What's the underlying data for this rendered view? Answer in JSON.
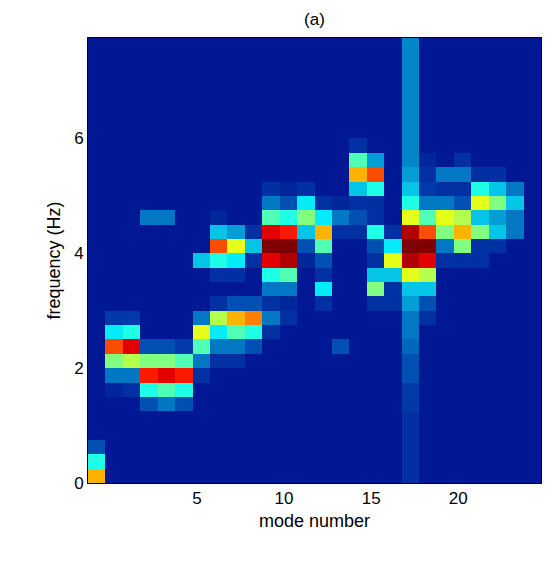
{
  "chart_data": {
    "type": "heatmap",
    "title": "(a)",
    "x_label": "mode number",
    "y_label": "frequency (Hz)",
    "x": [
      -0.75,
      0.25,
      1.25,
      2.25,
      3.25,
      4.25,
      5.25,
      6.25,
      7.25,
      8.25,
      9.25,
      10.25,
      11.25,
      12.25,
      13.25,
      14.25,
      15.25,
      16.25,
      17.25,
      18.25,
      19.25,
      20.25,
      21.25,
      22.25,
      23.25,
      24.25
    ],
    "y": [
      0.125,
      0.375,
      0.625,
      0.875,
      1.125,
      1.375,
      1.625,
      1.875,
      2.125,
      2.375,
      2.625,
      2.875,
      3.125,
      3.375,
      3.625,
      3.875,
      4.125,
      4.375,
      4.625,
      4.875,
      5.125,
      5.375,
      5.625,
      5.875,
      6.125,
      6.375,
      6.625,
      6.875,
      7.125,
      7.375,
      7.625
    ],
    "xlim": [
      -1.25,
      24.75
    ],
    "ylim": [
      0,
      7.75
    ],
    "xticks": [
      5,
      10,
      15,
      20
    ],
    "yticks": [
      0,
      2,
      4,
      6
    ],
    "zlim": [
      0,
      1
    ],
    "z_columns": [
      [
        0.7,
        0.4,
        0.15,
        0.05,
        0.05,
        0.05,
        0.05,
        0.05,
        0.05,
        0.05,
        0.05,
        0.05,
        0.05,
        0.05,
        0.05,
        0.05,
        0.05,
        0.05,
        0.05,
        0.05,
        0.05,
        0.05,
        0.05,
        0.05,
        0.05,
        0.05,
        0.05,
        0.05,
        0.05,
        0.05,
        0.05
      ],
      [
        0.05,
        0.05,
        0.05,
        0.05,
        0.05,
        0.05,
        0.08,
        0.2,
        0.5,
        0.8,
        0.35,
        0.12,
        0.05,
        0.05,
        0.05,
        0.05,
        0.05,
        0.05,
        0.05,
        0.05,
        0.05,
        0.05,
        0.05,
        0.05,
        0.05,
        0.05,
        0.05,
        0.05,
        0.05,
        0.05,
        0.05
      ],
      [
        0.05,
        0.05,
        0.05,
        0.05,
        0.05,
        0.05,
        0.1,
        0.2,
        0.55,
        0.9,
        0.4,
        0.12,
        0.05,
        0.05,
        0.05,
        0.05,
        0.05,
        0.05,
        0.05,
        0.05,
        0.05,
        0.05,
        0.05,
        0.05,
        0.05,
        0.05,
        0.05,
        0.05,
        0.05,
        0.05,
        0.05
      ],
      [
        0.05,
        0.05,
        0.05,
        0.05,
        0.05,
        0.15,
        0.4,
        0.85,
        0.5,
        0.15,
        0.05,
        0.05,
        0.05,
        0.05,
        0.05,
        0.05,
        0.05,
        0.05,
        0.2,
        0.05,
        0.05,
        0.05,
        0.05,
        0.05,
        0.05,
        0.05,
        0.05,
        0.05,
        0.05,
        0.05,
        0.05
      ],
      [
        0.05,
        0.05,
        0.05,
        0.05,
        0.05,
        0.2,
        0.45,
        0.9,
        0.5,
        0.15,
        0.05,
        0.05,
        0.05,
        0.05,
        0.05,
        0.05,
        0.05,
        0.05,
        0.2,
        0.05,
        0.05,
        0.05,
        0.05,
        0.05,
        0.05,
        0.05,
        0.05,
        0.05,
        0.05,
        0.05,
        0.05
      ],
      [
        0.05,
        0.05,
        0.05,
        0.05,
        0.05,
        0.15,
        0.4,
        0.85,
        0.45,
        0.12,
        0.05,
        0.05,
        0.05,
        0.05,
        0.05,
        0.05,
        0.05,
        0.05,
        0.05,
        0.05,
        0.05,
        0.05,
        0.05,
        0.05,
        0.05,
        0.05,
        0.05,
        0.05,
        0.05,
        0.05,
        0.05
      ],
      [
        0.05,
        0.05,
        0.05,
        0.05,
        0.05,
        0.05,
        0.05,
        0.1,
        0.2,
        0.45,
        0.6,
        0.2,
        0.05,
        0.05,
        0.05,
        0.3,
        0.05,
        0.05,
        0.05,
        0.05,
        0.05,
        0.05,
        0.05,
        0.05,
        0.05,
        0.05,
        0.05,
        0.05,
        0.05,
        0.05,
        0.05
      ],
      [
        0.05,
        0.05,
        0.05,
        0.05,
        0.05,
        0.05,
        0.05,
        0.05,
        0.1,
        0.2,
        0.35,
        0.55,
        0.1,
        0.05,
        0.1,
        0.4,
        0.8,
        0.3,
        0.08,
        0.05,
        0.05,
        0.05,
        0.05,
        0.05,
        0.05,
        0.05,
        0.05,
        0.05,
        0.05,
        0.05,
        0.05
      ],
      [
        0.05,
        0.05,
        0.05,
        0.05,
        0.05,
        0.05,
        0.05,
        0.05,
        0.1,
        0.2,
        0.45,
        0.7,
        0.15,
        0.05,
        0.1,
        0.35,
        0.6,
        0.25,
        0.05,
        0.05,
        0.05,
        0.05,
        0.05,
        0.05,
        0.05,
        0.05,
        0.05,
        0.05,
        0.05,
        0.05,
        0.05
      ],
      [
        0.05,
        0.05,
        0.05,
        0.05,
        0.05,
        0.05,
        0.05,
        0.05,
        0.05,
        0.15,
        0.4,
        0.75,
        0.15,
        0.05,
        0.05,
        0.1,
        0.3,
        0.1,
        0.05,
        0.05,
        0.05,
        0.05,
        0.05,
        0.05,
        0.05,
        0.05,
        0.05,
        0.05,
        0.05,
        0.05,
        0.05
      ],
      [
        0.05,
        0.05,
        0.05,
        0.05,
        0.05,
        0.05,
        0.05,
        0.05,
        0.05,
        0.05,
        0.1,
        0.2,
        0.1,
        0.2,
        0.4,
        0.9,
        1,
        0.9,
        0.45,
        0.2,
        0.1,
        0.05,
        0.05,
        0.05,
        0.05,
        0.05,
        0.05,
        0.05,
        0.05,
        0.05,
        0.05
      ],
      [
        0.05,
        0.05,
        0.05,
        0.05,
        0.05,
        0.05,
        0.05,
        0.05,
        0.05,
        0.05,
        0.05,
        0.1,
        0.08,
        0.2,
        0.45,
        0.95,
        1,
        0.85,
        0.4,
        0.15,
        0.08,
        0.05,
        0.05,
        0.05,
        0.05,
        0.05,
        0.05,
        0.05,
        0.05,
        0.05,
        0.05
      ],
      [
        0.05,
        0.05,
        0.05,
        0.05,
        0.05,
        0.05,
        0.05,
        0.05,
        0.05,
        0.05,
        0.05,
        0.05,
        0.05,
        0.05,
        0.05,
        0.08,
        0.15,
        0.3,
        0.5,
        0.35,
        0.1,
        0.05,
        0.05,
        0.05,
        0.05,
        0.05,
        0.05,
        0.05,
        0.05,
        0.05,
        0.05
      ],
      [
        0.05,
        0.05,
        0.05,
        0.05,
        0.05,
        0.05,
        0.05,
        0.05,
        0.05,
        0.05,
        0.05,
        0.05,
        0.1,
        0.35,
        0.1,
        0.15,
        0.45,
        0.7,
        0.35,
        0.1,
        0.05,
        0.05,
        0.05,
        0.05,
        0.05,
        0.05,
        0.05,
        0.05,
        0.05,
        0.05,
        0.05
      ],
      [
        0.05,
        0.05,
        0.05,
        0.05,
        0.05,
        0.05,
        0.05,
        0.05,
        0.05,
        0.15,
        0.05,
        0.05,
        0.05,
        0.05,
        0.05,
        0.05,
        0.05,
        0.1,
        0.2,
        0.08,
        0.05,
        0.05,
        0.05,
        0.05,
        0.05,
        0.05,
        0.05,
        0.05,
        0.05,
        0.05,
        0.05
      ],
      [
        0.05,
        0.05,
        0.05,
        0.05,
        0.05,
        0.05,
        0.05,
        0.05,
        0.05,
        0.05,
        0.05,
        0.05,
        0.05,
        0.05,
        0.05,
        0.05,
        0.05,
        0.1,
        0.15,
        0.1,
        0.3,
        0.7,
        0.45,
        0.1,
        0.05,
        0.05,
        0.05,
        0.05,
        0.05,
        0.05,
        0.05
      ],
      [
        0.05,
        0.05,
        0.05,
        0.05,
        0.05,
        0.05,
        0.05,
        0.05,
        0.05,
        0.05,
        0.05,
        0.05,
        0.1,
        0.5,
        0.3,
        0.1,
        0.15,
        0.4,
        0.1,
        0.1,
        0.4,
        0.8,
        0.25,
        0.05,
        0.05,
        0.05,
        0.05,
        0.05,
        0.05,
        0.05,
        0.05
      ],
      [
        0.05,
        0.05,
        0.05,
        0.05,
        0.05,
        0.05,
        0.05,
        0.05,
        0.05,
        0.05,
        0.05,
        0.05,
        0.1,
        0.1,
        0.3,
        0.6,
        0.35,
        0.1,
        0.05,
        0.05,
        0.05,
        0.05,
        0.05,
        0.05,
        0.05,
        0.05,
        0.05,
        0.05,
        0.05,
        0.05,
        0.05
      ],
      [
        0.1,
        0.1,
        0.1,
        0.1,
        0.1,
        0.12,
        0.12,
        0.15,
        0.15,
        0.18,
        0.2,
        0.2,
        0.25,
        0.3,
        0.6,
        0.95,
        1,
        0.95,
        0.6,
        0.4,
        0.3,
        0.25,
        0.22,
        0.22,
        0.22,
        0.22,
        0.22,
        0.22,
        0.22,
        0.22,
        0.22
      ],
      [
        0.05,
        0.05,
        0.05,
        0.05,
        0.05,
        0.05,
        0.05,
        0.05,
        0.05,
        0.05,
        0.05,
        0.1,
        0.15,
        0.3,
        0.55,
        0.9,
        1,
        0.8,
        0.45,
        0.2,
        0.12,
        0.1,
        0.08,
        0.05,
        0.05,
        0.05,
        0.05,
        0.05,
        0.05,
        0.05,
        0.05
      ],
      [
        0.05,
        0.05,
        0.05,
        0.05,
        0.05,
        0.05,
        0.05,
        0.05,
        0.05,
        0.05,
        0.05,
        0.05,
        0.05,
        0.05,
        0.05,
        0.1,
        0.2,
        0.5,
        0.6,
        0.2,
        0.1,
        0.2,
        0.05,
        0.05,
        0.05,
        0.05,
        0.05,
        0.05,
        0.05,
        0.05,
        0.05
      ],
      [
        0.05,
        0.05,
        0.05,
        0.05,
        0.05,
        0.05,
        0.05,
        0.05,
        0.05,
        0.05,
        0.05,
        0.05,
        0.05,
        0.05,
        0.05,
        0.1,
        0.5,
        0.7,
        0.55,
        0.15,
        0.1,
        0.2,
        0.1,
        0.05,
        0.05,
        0.05,
        0.05,
        0.05,
        0.05,
        0.05,
        0.05
      ],
      [
        0.05,
        0.05,
        0.05,
        0.05,
        0.05,
        0.05,
        0.05,
        0.05,
        0.05,
        0.05,
        0.05,
        0.05,
        0.05,
        0.05,
        0.05,
        0.1,
        0.1,
        0.5,
        0.3,
        0.6,
        0.4,
        0.1,
        0.05,
        0.05,
        0.05,
        0.05,
        0.05,
        0.05,
        0.05,
        0.05,
        0.05
      ],
      [
        0.05,
        0.05,
        0.05,
        0.05,
        0.05,
        0.05,
        0.05,
        0.05,
        0.05,
        0.05,
        0.05,
        0.05,
        0.05,
        0.05,
        0.05,
        0.05,
        0.1,
        0.3,
        0.25,
        0.5,
        0.3,
        0.1,
        0.05,
        0.05,
        0.05,
        0.05,
        0.05,
        0.05,
        0.05,
        0.05,
        0.05
      ],
      [
        0.05,
        0.05,
        0.05,
        0.05,
        0.05,
        0.05,
        0.05,
        0.05,
        0.05,
        0.05,
        0.05,
        0.05,
        0.05,
        0.05,
        0.05,
        0.05,
        0.05,
        0.2,
        0.2,
        0.3,
        0.2,
        0.05,
        0.05,
        0.05,
        0.05,
        0.05,
        0.05,
        0.05,
        0.05,
        0.05,
        0.05
      ],
      [
        0.05,
        0.05,
        0.05,
        0.05,
        0.05,
        0.05,
        0.05,
        0.05,
        0.05,
        0.05,
        0.05,
        0.05,
        0.05,
        0.05,
        0.05,
        0.05,
        0.05,
        0.05,
        0.05,
        0.05,
        0.05,
        0.05,
        0.05,
        0.05,
        0.05,
        0.05,
        0.05,
        0.05,
        0.05,
        0.05,
        0.05
      ]
    ]
  }
}
